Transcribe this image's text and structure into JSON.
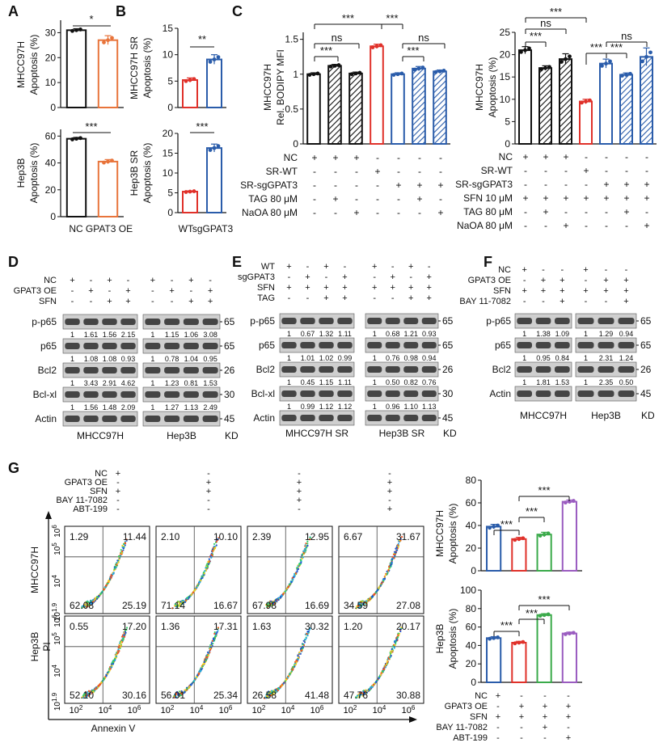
{
  "colors": {
    "black": "#111111",
    "orange": "#e8743b",
    "red": "#e0312a",
    "blue": "#2a5caa",
    "green": "#3aaa4a",
    "purple": "#9a5cc0"
  },
  "panels": {
    "A": "A",
    "B": "B",
    "C": "C",
    "D": "D",
    "E": "E",
    "F": "F",
    "G": "G"
  },
  "panelA": {
    "top_ylabel": [
      "MHCC97H",
      "Apoptosis (%)"
    ],
    "bottom_ylabel": [
      "Hep3B",
      "Apoptosis (%)"
    ],
    "xlabels": [
      "NC",
      "GPAT3 OE"
    ],
    "top_sig": "*",
    "bottom_sig": "***",
    "top_yticks": [
      "0",
      "10",
      "20",
      "30"
    ],
    "bottom_yticks": [
      "0",
      "20",
      "40",
      "60"
    ]
  },
  "panelB": {
    "top_ylabel": [
      "MHCC97H SR",
      "Apoptosis (%)"
    ],
    "bottom_ylabel": [
      "Hep3B SR",
      "Apoptosis (%)"
    ],
    "xlabels": [
      "WT",
      "sgGPAT3"
    ],
    "top_sig": "**",
    "bottom_sig": "***",
    "top_yticks": [
      "0",
      "5",
      "10",
      "15"
    ],
    "bottom_yticks": [
      "0",
      "5",
      "10",
      "15",
      "20"
    ]
  },
  "panelC": {
    "left_ylabel": [
      "MHCC97H",
      "Rel. BODIPY MFI"
    ],
    "right_ylabel": [
      "MHCC97H",
      "Apoptosis (%)"
    ],
    "left_yticks": [
      "0",
      "0.5",
      "1",
      "1.5"
    ],
    "right_yticks": [
      "0",
      "5",
      "10",
      "15",
      "20",
      "25"
    ],
    "left_sigs": [
      "***",
      "ns",
      "***",
      "***",
      "ns",
      "***"
    ],
    "right_sigs": [
      "***",
      "ns",
      "***",
      "***",
      "ns",
      "***"
    ],
    "left_rows": [
      {
        "label": "NC",
        "marks": [
          "+",
          "+",
          "+",
          "-",
          "-",
          "-",
          "-"
        ]
      },
      {
        "label": "SR-WT",
        "marks": [
          "-",
          "-",
          "-",
          "+",
          "-",
          "-",
          "-"
        ]
      },
      {
        "label": "SR-sgGPAT3",
        "marks": [
          "-",
          "-",
          "-",
          "-",
          "+",
          "+",
          "+"
        ]
      },
      {
        "label": "TAG 80 μM",
        "marks": [
          "-",
          "+",
          "-",
          "-",
          "-",
          "+",
          "-"
        ]
      },
      {
        "label": "NaOA 80 μM",
        "marks": [
          "-",
          "-",
          "+",
          "-",
          "-",
          "-",
          "+"
        ]
      }
    ],
    "right_rows": [
      {
        "label": "NC",
        "marks": [
          "+",
          "+",
          "+",
          "-",
          "-",
          "-",
          "-"
        ]
      },
      {
        "label": "SR-WT",
        "marks": [
          "-",
          "-",
          "-",
          "+",
          "-",
          "-",
          "-"
        ]
      },
      {
        "label": "SR-sgGPAT3",
        "marks": [
          "-",
          "-",
          "-",
          "-",
          "+",
          "+",
          "+"
        ]
      },
      {
        "label": "SFN 10 μM",
        "marks": [
          "+",
          "+",
          "+",
          "+",
          "+",
          "+",
          "+"
        ]
      },
      {
        "label": "TAG 80 μM",
        "marks": [
          "-",
          "+",
          "-",
          "-",
          "-",
          "+",
          "-"
        ]
      },
      {
        "label": "NaOA 80 μM",
        "marks": [
          "-",
          "-",
          "+",
          "-",
          "-",
          "-",
          "+"
        ]
      }
    ]
  },
  "chart_data": [
    {
      "type": "bar",
      "id": "A-top",
      "categories": [
        "NC",
        "GPAT3 OE"
      ],
      "values": [
        31,
        27
      ],
      "ylabel": "MHCC97H Apoptosis (%)",
      "ylim": [
        0,
        35
      ]
    },
    {
      "type": "bar",
      "id": "A-bottom",
      "categories": [
        "NC",
        "GPAT3 OE"
      ],
      "values": [
        58,
        41
      ],
      "ylabel": "Hep3B Apoptosis (%)",
      "ylim": [
        0,
        65
      ]
    },
    {
      "type": "bar",
      "id": "B-top",
      "categories": [
        "WT",
        "sgGPAT3"
      ],
      "values": [
        5.2,
        9.1
      ],
      "ylabel": "MHCC97H SR Apoptosis (%)",
      "ylim": [
        0,
        15
      ]
    },
    {
      "type": "bar",
      "id": "B-bottom",
      "categories": [
        "WT",
        "sgGPAT3"
      ],
      "values": [
        5.3,
        16.3
      ],
      "ylabel": "Hep3B SR Apoptosis (%)",
      "ylim": [
        0,
        20
      ]
    },
    {
      "type": "bar",
      "id": "C-left",
      "categories": [
        "1",
        "2",
        "3",
        "4",
        "5",
        "6",
        "7"
      ],
      "values": [
        1.0,
        1.12,
        1.01,
        1.4,
        1.0,
        1.08,
        1.04
      ],
      "ylabel": "MHCC97H Rel. BODIPY MFI",
      "ylim": [
        0,
        1.6
      ]
    },
    {
      "type": "bar",
      "id": "C-right",
      "categories": [
        "1",
        "2",
        "3",
        "4",
        "5",
        "6",
        "7"
      ],
      "values": [
        21,
        17,
        19,
        9.5,
        18,
        15.5,
        19.5
      ],
      "ylabel": "MHCC97H Apoptosis (%)",
      "ylim": [
        0,
        25
      ]
    },
    {
      "type": "bar",
      "id": "G-top",
      "categories": [
        "1",
        "2",
        "3",
        "4"
      ],
      "values": [
        39,
        28,
        32,
        61
      ],
      "ylabel": "MHCC97H Apoptosis (%)",
      "ylim": [
        0,
        80
      ]
    },
    {
      "type": "bar",
      "id": "G-bottom",
      "categories": [
        "1",
        "2",
        "3",
        "4"
      ],
      "values": [
        48,
        43,
        73,
        53
      ],
      "ylabel": "Hep3B Apoptosis (%)",
      "ylim": [
        0,
        100
      ]
    }
  ],
  "panelD": {
    "rows": [
      {
        "label": "NC",
        "left": [
          "+",
          "-",
          "+",
          "-"
        ],
        "right": [
          "+",
          "-",
          "+",
          "-"
        ]
      },
      {
        "label": "GPAT3 OE",
        "left": [
          "-",
          "+",
          "-",
          "+"
        ],
        "right": [
          "-",
          "+",
          "-",
          "+"
        ]
      },
      {
        "label": "SFN",
        "left": [
          "-",
          "-",
          "+",
          "+"
        ],
        "right": [
          "-",
          "-",
          "+",
          "+"
        ]
      }
    ],
    "blots": [
      {
        "label": "p-p65",
        "left": [
          "1",
          "1.61",
          "1.56",
          "2.15"
        ],
        "right": [
          "1",
          "1.15",
          "1.06",
          "3.08"
        ],
        "kd": "65"
      },
      {
        "label": "p65",
        "left": [
          "1",
          "1.08",
          "1.08",
          "0.93"
        ],
        "right": [
          "1",
          "0.78",
          "1.04",
          "0.95"
        ],
        "kd": "65"
      },
      {
        "label": "Bcl2",
        "left": [
          "1",
          "3.43",
          "2.91",
          "4.62"
        ],
        "right": [
          "1",
          "1.23",
          "0.81",
          "1.53"
        ],
        "kd": "26"
      },
      {
        "label": "Bcl-xl",
        "left": [
          "1",
          "1.56",
          "1.48",
          "2.09"
        ],
        "right": [
          "1",
          "1.27",
          "1.13",
          "2.49"
        ],
        "kd": "30"
      },
      {
        "label": "Actin",
        "left": [],
        "right": [],
        "kd": "45"
      }
    ],
    "cells": [
      "MHCC97H",
      "Hep3B"
    ],
    "kd_label": "KD"
  },
  "panelE": {
    "rows": [
      {
        "label": "WT",
        "left": [
          "+",
          "-",
          "+",
          "-"
        ],
        "right": [
          "+",
          "-",
          "+",
          "-"
        ]
      },
      {
        "label": "sgGPAT3",
        "left": [
          "-",
          "+",
          "-",
          "+"
        ],
        "right": [
          "-",
          "+",
          "-",
          "+"
        ]
      },
      {
        "label": "SFN",
        "left": [
          "+",
          "+",
          "+",
          "+"
        ],
        "right": [
          "+",
          "+",
          "+",
          "+"
        ]
      },
      {
        "label": "TAG",
        "left": [
          "-",
          "-",
          "+",
          "+"
        ],
        "right": [
          "-",
          "-",
          "+",
          "+"
        ]
      }
    ],
    "blots": [
      {
        "label": "p-p65",
        "left": [
          "1",
          "0.67",
          "1.32",
          "1.11"
        ],
        "right": [
          "1",
          "0.68",
          "1.21",
          "0.93"
        ],
        "kd": "65"
      },
      {
        "label": "p65",
        "left": [
          "1",
          "1.01",
          "1.02",
          "0.99"
        ],
        "right": [
          "1",
          "0.76",
          "0.98",
          "0.94"
        ],
        "kd": "65"
      },
      {
        "label": "Bcl2",
        "left": [
          "1",
          "0.45",
          "1.15",
          "1.11"
        ],
        "right": [
          "1",
          "0.50",
          "0.82",
          "0.76"
        ],
        "kd": "26"
      },
      {
        "label": "Bcl-xl",
        "left": [
          "1",
          "0.99",
          "1.12",
          "1.12"
        ],
        "right": [
          "1",
          "0.96",
          "1.10",
          "1.13"
        ],
        "kd": "30"
      },
      {
        "label": "Actin",
        "left": [],
        "right": [],
        "kd": "45"
      }
    ],
    "cells": [
      "MHCC97H SR",
      "Hep3B SR"
    ],
    "kd_label": "KD"
  },
  "panelF": {
    "rows": [
      {
        "label": "NC",
        "left": [
          "+",
          "-",
          "-"
        ],
        "right": [
          "+",
          "-",
          "-"
        ]
      },
      {
        "label": "GPAT3 OE",
        "left": [
          "-",
          "+",
          "+"
        ],
        "right": [
          "-",
          "+",
          "+"
        ]
      },
      {
        "label": "SFN",
        "left": [
          "+",
          "+",
          "+"
        ],
        "right": [
          "+",
          "+",
          "+"
        ]
      },
      {
        "label": "BAY 11-7082",
        "left": [
          "-",
          "-",
          "+"
        ],
        "right": [
          "-",
          "-",
          "+"
        ]
      }
    ],
    "blots": [
      {
        "label": "p-p65",
        "left": [
          "1",
          "1.38",
          "1.09"
        ],
        "right": [
          "1",
          "1.29",
          "0.94"
        ],
        "kd": "65"
      },
      {
        "label": "p65",
        "left": [
          "1",
          "0.95",
          "0.84"
        ],
        "right": [
          "1",
          "2.31",
          "1.24"
        ],
        "kd": "65"
      },
      {
        "label": "Bcl2",
        "left": [
          "1",
          "1.81",
          "1.53"
        ],
        "right": [
          "1",
          "2.35",
          "0.50"
        ],
        "kd": "26"
      },
      {
        "label": "Actin",
        "left": [],
        "right": [],
        "kd": "45"
      }
    ],
    "cells": [
      "MHCC97H",
      "Hep3B"
    ],
    "kd_label": "KD"
  },
  "panelG": {
    "rows": [
      {
        "label": "NC",
        "marks": [
          "+",
          "-",
          "-",
          "-"
        ]
      },
      {
        "label": "GPAT3 OE",
        "marks": [
          "-",
          "+",
          "+",
          "+"
        ]
      },
      {
        "label": "SFN",
        "marks": [
          "+",
          "+",
          "+",
          "+"
        ]
      },
      {
        "label": "BAY 11-7082",
        "marks": [
          "-",
          "-",
          "+",
          "-"
        ]
      },
      {
        "label": "ABT-199",
        "marks": [
          "-",
          "-",
          "-",
          "+"
        ]
      }
    ],
    "flow_top": [
      {
        "ul": "1.29",
        "ur": "11.44",
        "ll": "62.08",
        "lr": "25.19"
      },
      {
        "ul": "2.10",
        "ur": "10.10",
        "ll": "71.14",
        "lr": "16.67"
      },
      {
        "ul": "2.39",
        "ur": "12.95",
        "ll": "67.98",
        "lr": "16.69"
      },
      {
        "ul": "6.67",
        "ur": "31.67",
        "ll": "34.59",
        "lr": "27.08"
      }
    ],
    "flow_bottom": [
      {
        "ul": "0.55",
        "ur": "17.20",
        "ll": "52.10",
        "lr": "30.16"
      },
      {
        "ul": "1.36",
        "ur": "17.31",
        "ll": "56.01",
        "lr": "25.34"
      },
      {
        "ul": "1.63",
        "ur": "30.32",
        "ll": "26.58",
        "lr": "41.48"
      },
      {
        "ul": "1.20",
        "ur": "20.17",
        "ll": "47.76",
        "lr": "30.88"
      }
    ],
    "row_labels": [
      "MHCC97H",
      "Hep3B"
    ],
    "pi_label": "PI",
    "annexin_label": "Annexin V",
    "flow_yticks": [
      "10^1.9",
      "10^4",
      "10^5",
      "10^6"
    ],
    "flow_xticks": [
      "10^2",
      "10^4",
      "10^6"
    ],
    "bar_top_ylabel": [
      "MHCC97H",
      "Apoptosis (%)"
    ],
    "bar_bottom_ylabel": [
      "Hep3B",
      "Apoptosis (%)"
    ],
    "bar_top_yticks": [
      "0",
      "20",
      "40",
      "60",
      "80"
    ],
    "bar_bottom_yticks": [
      "0",
      "20",
      "40",
      "60",
      "80",
      "100"
    ],
    "bar_sigs": [
      "***",
      "***",
      "***"
    ]
  }
}
